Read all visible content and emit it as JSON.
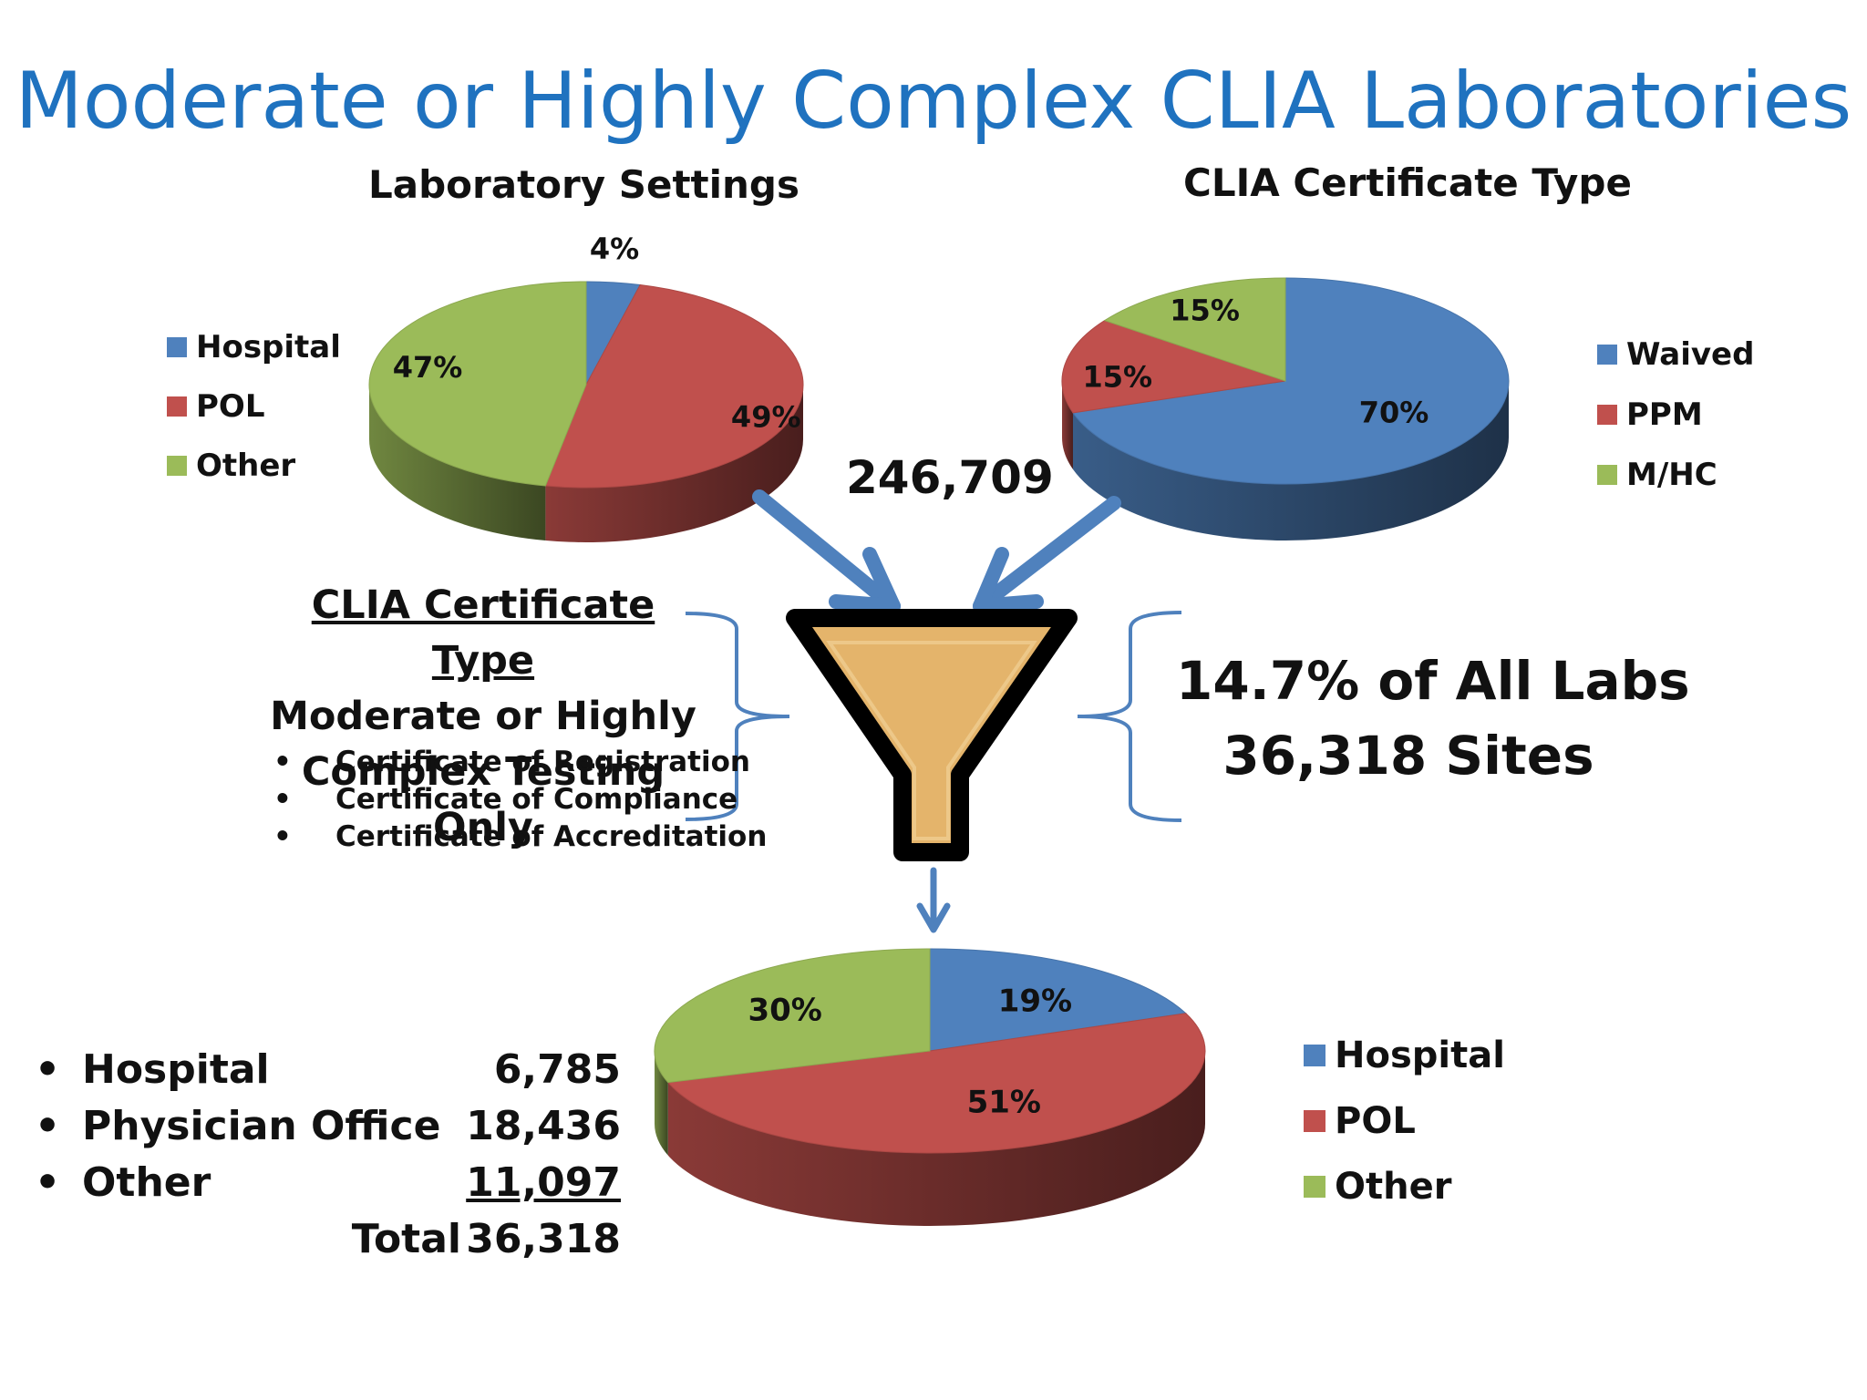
{
  "title": "Moderate or Highly Complex CLIA Laboratories",
  "total_labs": "246,709",
  "colors": {
    "hospital": "#4f81bd",
    "pol": "#c0504d",
    "other": "#9bbb59",
    "arrow": "#4f81bd",
    "funnel_fill": "#e4b46b",
    "title": "#1f72bf"
  },
  "chart_data": [
    {
      "type": "pie",
      "title": "Laboratory Settings",
      "categories": [
        "Hospital",
        "POL",
        "Other"
      ],
      "values": [
        4,
        49,
        47
      ],
      "labels": [
        "4%",
        "49%",
        "47%"
      ],
      "legend_position": "left"
    },
    {
      "type": "pie",
      "title": "CLIA Certificate Type",
      "categories": [
        "Waived",
        "PPM",
        "M/HC"
      ],
      "values": [
        70,
        15,
        15
      ],
      "labels": [
        "70%",
        "15%",
        "15%"
      ],
      "legend_position": "right"
    },
    {
      "type": "pie",
      "title": "",
      "categories": [
        "Hospital",
        "POL",
        "Other"
      ],
      "values": [
        19,
        51,
        30
      ],
      "labels": [
        "19%",
        "51%",
        "30%"
      ],
      "legend_position": "right"
    }
  ],
  "criteria": {
    "title": "CLIA Certificate Type",
    "line1": "Moderate or Highly",
    "line2": "Complex Testing Only",
    "bullet": "•",
    "items": [
      "Certificate of Registration",
      "Certificate of Compliance",
      "Certificate of Accreditation"
    ]
  },
  "summary": {
    "line1": "14.7% of All Labs",
    "line2": "36,318 Sites"
  },
  "counts": {
    "bullet": "•",
    "rows": [
      {
        "label": "Hospital",
        "value": "6,785"
      },
      {
        "label": "Physician Office",
        "value": "18,436"
      },
      {
        "label": "Other",
        "value": "11,097"
      }
    ],
    "total_label": "Total",
    "total_value": "36,318"
  }
}
